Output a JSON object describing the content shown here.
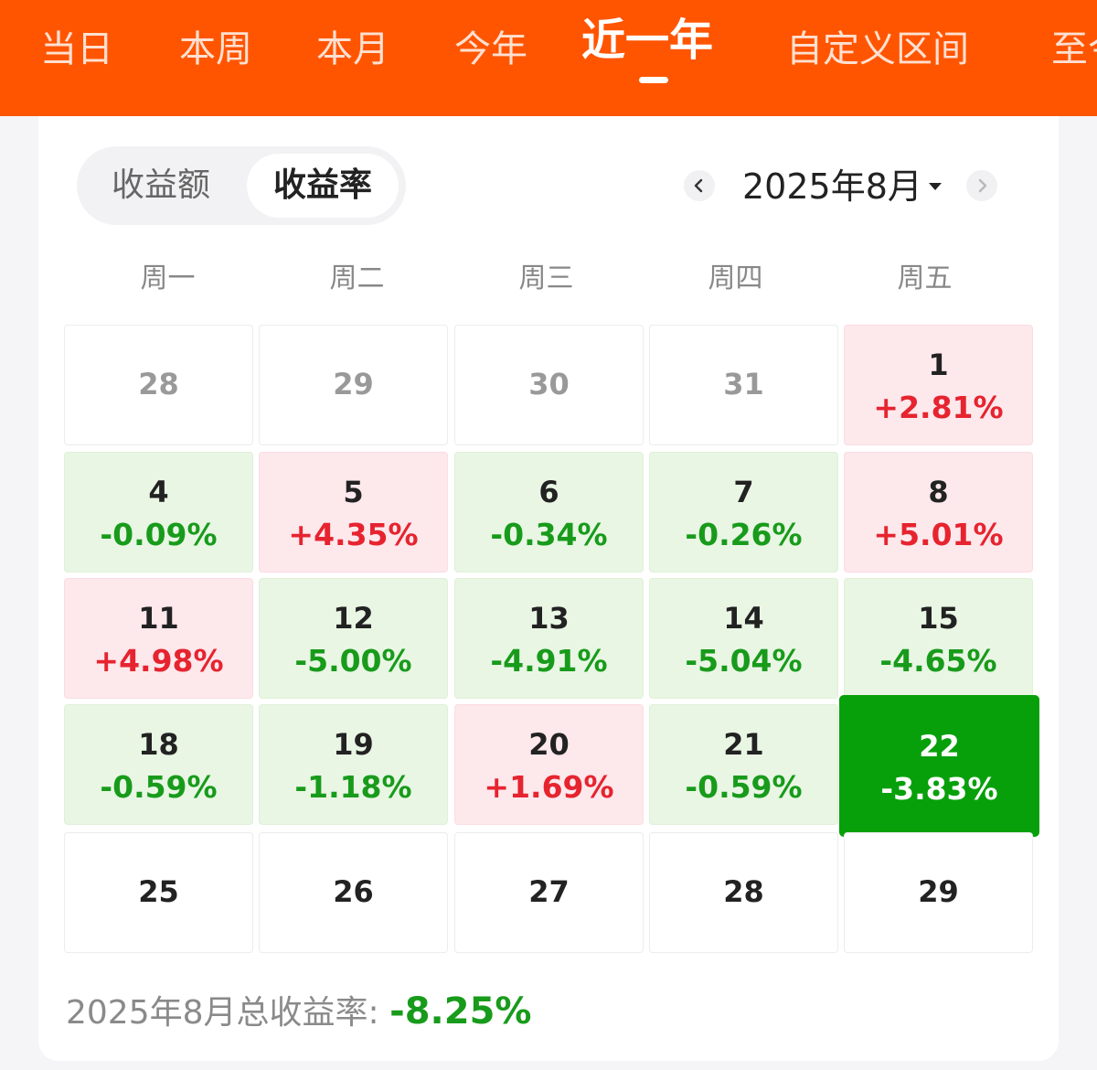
{
  "tabs": [
    {
      "label": "当日"
    },
    {
      "label": "本周"
    },
    {
      "label": "本月"
    },
    {
      "label": "今年"
    },
    {
      "label": "近一年",
      "active": true
    },
    {
      "label": "自定义区间"
    },
    {
      "label": "至今"
    }
  ],
  "toggle": {
    "amount_label": "收益额",
    "rate_label": "收益率",
    "selected": "收益率"
  },
  "month_nav": {
    "label": "2025年8月",
    "prev_icon": "chevron-left-icon",
    "next_icon": "chevron-right-icon",
    "dropdown_icon": "caret-down-icon"
  },
  "weekdays": [
    "周一",
    "周二",
    "周三",
    "周四",
    "周五"
  ],
  "weeks": [
    [
      {
        "day": "28",
        "pct": "",
        "state": "other"
      },
      {
        "day": "29",
        "pct": "",
        "state": "other"
      },
      {
        "day": "30",
        "pct": "",
        "state": "other"
      },
      {
        "day": "31",
        "pct": "",
        "state": "other"
      },
      {
        "day": "1",
        "pct": "+2.81%",
        "state": "up"
      }
    ],
    [
      {
        "day": "4",
        "pct": "-0.09%",
        "state": "down"
      },
      {
        "day": "5",
        "pct": "+4.35%",
        "state": "up"
      },
      {
        "day": "6",
        "pct": "-0.34%",
        "state": "down"
      },
      {
        "day": "7",
        "pct": "-0.26%",
        "state": "down"
      },
      {
        "day": "8",
        "pct": "+5.01%",
        "state": "up"
      }
    ],
    [
      {
        "day": "11",
        "pct": "+4.98%",
        "state": "up"
      },
      {
        "day": "12",
        "pct": "-5.00%",
        "state": "down"
      },
      {
        "day": "13",
        "pct": "-4.91%",
        "state": "down"
      },
      {
        "day": "14",
        "pct": "-5.04%",
        "state": "down"
      },
      {
        "day": "15",
        "pct": "-4.65%",
        "state": "down"
      }
    ],
    [
      {
        "day": "18",
        "pct": "-0.59%",
        "state": "down"
      },
      {
        "day": "19",
        "pct": "-1.18%",
        "state": "down"
      },
      {
        "day": "20",
        "pct": "+1.69%",
        "state": "up"
      },
      {
        "day": "21",
        "pct": "-0.59%",
        "state": "down"
      },
      {
        "day": "22",
        "pct": "-3.83%",
        "state": "selected"
      }
    ],
    [
      {
        "day": "25",
        "pct": "",
        "state": "future"
      },
      {
        "day": "26",
        "pct": "",
        "state": "future"
      },
      {
        "day": "27",
        "pct": "",
        "state": "future"
      },
      {
        "day": "28",
        "pct": "",
        "state": "future"
      },
      {
        "day": "29",
        "pct": "",
        "state": "future"
      }
    ]
  ],
  "summary": {
    "label": "2025年8月总收益率: ",
    "value": "-8.25%"
  },
  "colors": {
    "brand": "#ff5500",
    "up": "#e6242f",
    "down": "#189b1b",
    "selected": "#07a00b"
  }
}
